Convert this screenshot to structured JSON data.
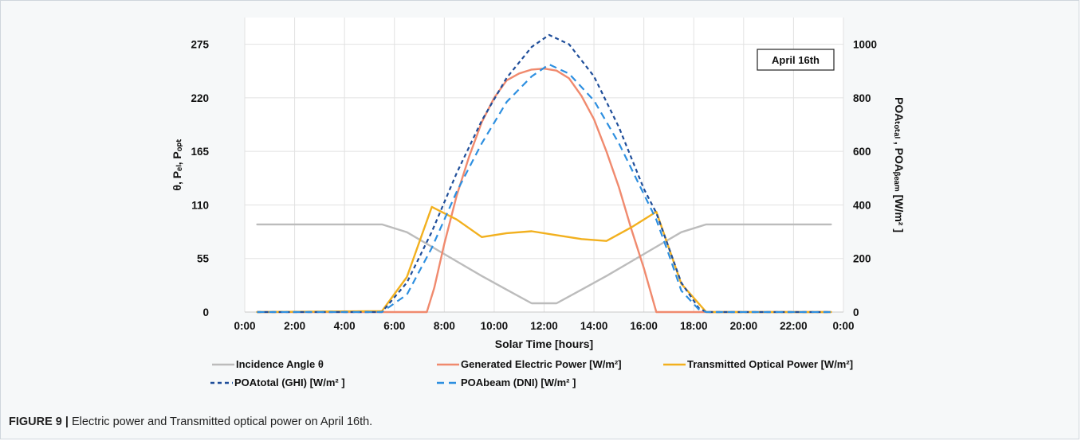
{
  "caption": {
    "lead": "FIGURE 9 |",
    "text": "Electric power and Transmitted optical power on April 16th."
  },
  "chart_data": {
    "type": "line",
    "annotation": "April 16th",
    "xlabel": "Solar Time [hours]",
    "xlim": [
      0,
      24
    ],
    "x_ticks": [
      0,
      2,
      4,
      6,
      8,
      10,
      12,
      14,
      16,
      18,
      20,
      22,
      24
    ],
    "x_tick_labels": [
      "0:00",
      "2:00",
      "4:00",
      "6:00",
      "8:00",
      "10:00",
      "12:00",
      "14:00",
      "16:00",
      "18:00",
      "20:00",
      "22:00",
      "0:00"
    ],
    "ylabel_left": "θ, Pₑₗ, Pₒₚₜ",
    "ylim_left": [
      0,
      302.5
    ],
    "y_ticks_left": [
      0,
      55,
      110,
      165,
      220,
      275
    ],
    "ylabel_right": "POAₜₒₜₐₗ , POAᵦₑₐₘ [W/m² ]",
    "ylim_right": [
      0,
      1100
    ],
    "y_ticks_right": [
      0,
      200,
      400,
      600,
      800,
      1000
    ],
    "grid": true,
    "legend_position": "bottom",
    "legend_entries": [
      {
        "label": "Incidence Angle θ",
        "series": 0
      },
      {
        "label": "Generated Electric Power [W/m²]",
        "series": 1
      },
      {
        "label": "Transmitted Optical Power [W/m²]",
        "series": 2
      },
      {
        "label": "POAtotal (GHI) [W/m² ]",
        "series": 3
      },
      {
        "label": "POAbeam (DNI) [W/m² ]",
        "series": 4
      }
    ],
    "series": [
      {
        "name": "Incidence Angle θ",
        "axis": "left",
        "color": "#bcbcbc",
        "dash": "solid",
        "points": [
          [
            0.5,
            90
          ],
          [
            5.5,
            90
          ],
          [
            6.5,
            82
          ],
          [
            7.5,
            67
          ],
          [
            8.5,
            52
          ],
          [
            9.5,
            37
          ],
          [
            10.5,
            23
          ],
          [
            11.5,
            9
          ],
          [
            12.5,
            9
          ],
          [
            13.5,
            23
          ],
          [
            14.5,
            37
          ],
          [
            15.5,
            52
          ],
          [
            16.5,
            67
          ],
          [
            17.5,
            82
          ],
          [
            18.5,
            90
          ],
          [
            23.5,
            90
          ]
        ]
      },
      {
        "name": "Generated Electric Power [W/m²]",
        "axis": "left",
        "color": "#f08a6e",
        "dash": "solid",
        "points": [
          [
            0.5,
            0
          ],
          [
            6.5,
            0
          ],
          [
            7.3,
            0
          ],
          [
            7.6,
            25
          ],
          [
            8,
            70
          ],
          [
            8.5,
            120
          ],
          [
            9,
            160
          ],
          [
            9.5,
            195
          ],
          [
            10,
            220
          ],
          [
            10.5,
            238
          ],
          [
            11,
            245
          ],
          [
            11.5,
            249
          ],
          [
            12,
            250
          ],
          [
            12.5,
            248
          ],
          [
            13,
            240
          ],
          [
            13.5,
            222
          ],
          [
            14,
            198
          ],
          [
            14.5,
            165
          ],
          [
            15,
            128
          ],
          [
            15.5,
            85
          ],
          [
            16,
            45
          ],
          [
            16.5,
            0
          ],
          [
            23.5,
            0
          ]
        ]
      },
      {
        "name": "Transmitted Optical Power [W/m²]",
        "axis": "left",
        "color": "#f2b01e",
        "dash": "solid",
        "points": [
          [
            0.5,
            0
          ],
          [
            5.5,
            1
          ],
          [
            6.5,
            36
          ],
          [
            7.5,
            108
          ],
          [
            8.5,
            95
          ],
          [
            9.5,
            77
          ],
          [
            10.5,
            81
          ],
          [
            11.5,
            83
          ],
          [
            12.5,
            79
          ],
          [
            13.5,
            75
          ],
          [
            14.5,
            73
          ],
          [
            15.5,
            87
          ],
          [
            16.5,
            103
          ],
          [
            17.5,
            29
          ],
          [
            18.5,
            0
          ],
          [
            23.5,
            0
          ]
        ]
      },
      {
        "name": "POAtotal (GHI) [W/m² ]",
        "axis": "right",
        "color": "#1f4e9a",
        "dash": "short",
        "points": [
          [
            0.5,
            0
          ],
          [
            5.5,
            0
          ],
          [
            6.5,
            110
          ],
          [
            7.5,
            300
          ],
          [
            8.5,
            520
          ],
          [
            9.5,
            715
          ],
          [
            10.5,
            875
          ],
          [
            11.5,
            990
          ],
          [
            12.2,
            1035
          ],
          [
            13,
            1000
          ],
          [
            14,
            880
          ],
          [
            15,
            690
          ],
          [
            16,
            460
          ],
          [
            16.5,
            370
          ],
          [
            17,
            240
          ],
          [
            17.5,
            110
          ],
          [
            18.2,
            15
          ],
          [
            18.5,
            0
          ],
          [
            23.5,
            0
          ]
        ]
      },
      {
        "name": "POAbeam (DNI) [W/m² ]",
        "axis": "right",
        "color": "#2d8fe0",
        "dash": "long",
        "points": [
          [
            0.5,
            0
          ],
          [
            5.5,
            0
          ],
          [
            6.5,
            65
          ],
          [
            7.5,
            240
          ],
          [
            8.5,
            450
          ],
          [
            9.5,
            630
          ],
          [
            10.5,
            785
          ],
          [
            11.5,
            880
          ],
          [
            12.2,
            925
          ],
          [
            13,
            890
          ],
          [
            14,
            790
          ],
          [
            15,
            630
          ],
          [
            16,
            440
          ],
          [
            16.5,
            345
          ],
          [
            17,
            215
          ],
          [
            17.5,
            80
          ],
          [
            18.2,
            10
          ],
          [
            18.5,
            0
          ],
          [
            23.5,
            0
          ]
        ]
      }
    ]
  }
}
